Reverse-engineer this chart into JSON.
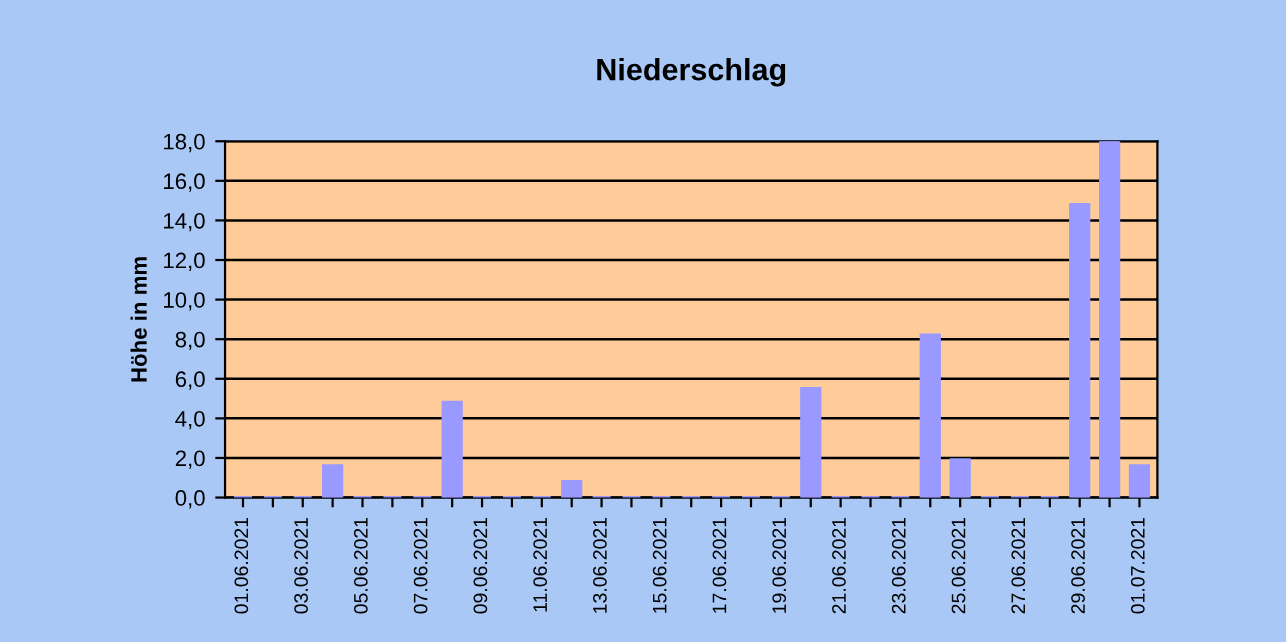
{
  "chart_data": {
    "type": "bar",
    "title": "Niederschlag",
    "ylabel": "Höhe in mm",
    "categories": [
      "01.06.2021",
      null,
      "03.06.2021",
      null,
      "05.06.2021",
      null,
      "07.06.2021",
      null,
      "09.06.2021",
      null,
      "11.06.2021",
      null,
      "13.06.2021",
      null,
      "15.06.2021",
      null,
      "17.06.2021",
      null,
      "19.06.2021",
      null,
      "21.06.2021",
      null,
      "23.06.2021",
      null,
      "25.06.2021",
      null,
      "27.06.2021",
      null,
      "29.06.2021",
      null,
      "01.07.2021"
    ],
    "values": [
      0,
      0,
      0,
      1.6,
      0,
      0,
      0,
      4.8,
      0,
      0,
      0,
      0.8,
      0,
      0,
      0,
      0,
      0,
      0,
      0,
      5.5,
      0,
      0,
      0,
      8.2,
      1.9,
      0,
      0,
      0,
      14.8,
      18.0,
      1.6
    ],
    "color": "#9999ff",
    "ylim": [
      0,
      18
    ],
    "yticks": [
      {
        "value": 0,
        "label": "0,0"
      },
      {
        "value": 2,
        "label": "2,0"
      },
      {
        "value": 4,
        "label": "4,0"
      },
      {
        "value": 6,
        "label": "6,0"
      },
      {
        "value": 8,
        "label": "8,0"
      },
      {
        "value": 10,
        "label": "10,0"
      },
      {
        "value": 12,
        "label": "12,0"
      },
      {
        "value": 14,
        "label": "14,0"
      },
      {
        "value": 16,
        "label": "16,0"
      },
      {
        "value": 18,
        "label": "18,0"
      }
    ],
    "grid": "y"
  }
}
